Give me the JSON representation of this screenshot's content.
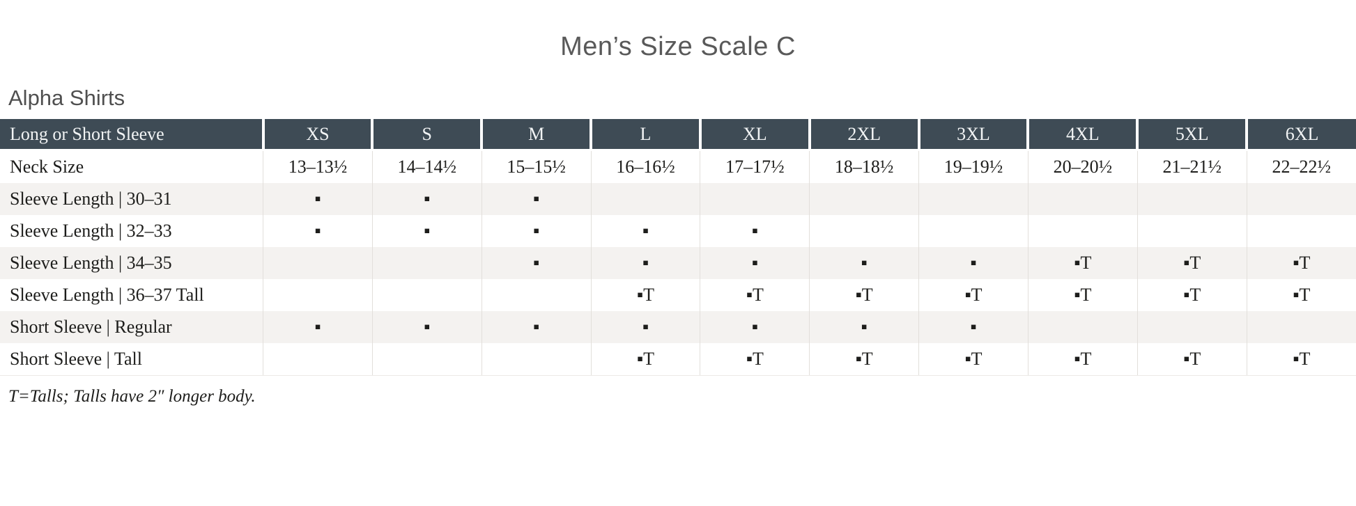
{
  "title": "Men’s Size Scale C",
  "section_title": "Alpha Shirts",
  "colors": {
    "header_bg": "#3e4b55",
    "header_text": "#f2f4f5",
    "stripe_row_bg": "#f4f2f0",
    "title_text": "#595959"
  },
  "table": {
    "header_label": "Long or Short Sleeve",
    "sizes": [
      "XS",
      "S",
      "M",
      "L",
      "XL",
      "2XL",
      "3XL",
      "4XL",
      "5XL",
      "6XL"
    ],
    "marker_legend": {
      "regular": "▪",
      "tall": "▪T"
    },
    "rows": [
      {
        "label": "Neck Size",
        "cells": [
          "13–13½",
          "14–14½",
          "15–15½",
          "16–16½",
          "17–17½",
          "18–18½",
          "19–19½",
          "20–20½",
          "21–21½",
          "22–22½"
        ]
      },
      {
        "label": "Sleeve Length | 30–31",
        "cells": [
          "▪",
          "▪",
          "▪",
          "",
          "",
          "",
          "",
          "",
          "",
          ""
        ]
      },
      {
        "label": "Sleeve Length | 32–33",
        "cells": [
          "▪",
          "▪",
          "▪",
          "▪",
          "▪",
          "",
          "",
          "",
          "",
          ""
        ]
      },
      {
        "label": "Sleeve Length | 34–35",
        "cells": [
          "",
          "",
          "▪",
          "▪",
          "▪",
          "▪",
          "▪",
          "▪T",
          "▪T",
          "▪T"
        ]
      },
      {
        "label": "Sleeve Length | 36–37 Tall",
        "cells": [
          "",
          "",
          "",
          "▪T",
          "▪T",
          "▪T",
          "▪T",
          "▪T",
          "▪T",
          "▪T"
        ]
      },
      {
        "label": "Short Sleeve | Regular",
        "cells": [
          "▪",
          "▪",
          "▪",
          "▪",
          "▪",
          "▪",
          "▪",
          "",
          "",
          ""
        ]
      },
      {
        "label": "Short Sleeve | Tall",
        "cells": [
          "",
          "",
          "",
          "▪T",
          "▪T",
          "▪T",
          "▪T",
          "▪T",
          "▪T",
          "▪T"
        ]
      }
    ]
  },
  "footnote": "T=Talls; Talls have 2″ longer body."
}
